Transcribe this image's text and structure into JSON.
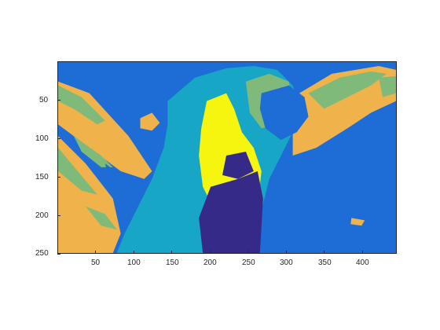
{
  "figure": {
    "kind": "indexed color image (imagesc-style) of a parrot with a 6-color colormap",
    "colormap": {
      "blue": "#1e6cd6",
      "cyan": "#17a6c6",
      "green": "#7fba7a",
      "orange": "#f0b24b",
      "yellow": "#f5f50f",
      "navy": "#352a87"
    },
    "x_ticks": [
      "50",
      "100",
      "150",
      "200",
      "250",
      "300",
      "350",
      "400"
    ],
    "y_ticks": [
      "50",
      "100",
      "150",
      "200",
      "250"
    ],
    "x_tick_values": [
      50,
      100,
      150,
      200,
      250,
      300,
      350,
      400
    ],
    "y_tick_values": [
      50,
      100,
      150,
      200,
      250
    ],
    "x_range": [
      0.5,
      445.5
    ],
    "y_range": [
      0.5,
      250.5
    ]
  }
}
